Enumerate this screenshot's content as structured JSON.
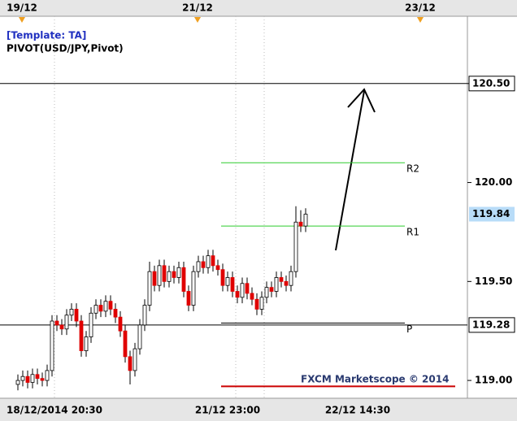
{
  "chart_data": {
    "type": "candlestick",
    "template": "[Template: TA]",
    "indicator": "PIVOT(USD/JPY,Pivot)",
    "watermark": "FXCM Marketscope © 2014",
    "top_dates": [
      "19/12",
      "21/12",
      "23/12"
    ],
    "x_axis_labels": [
      "18/12/2014 20:30",
      "21/12 23:00",
      "22/12 14:30"
    ],
    "ylim": [
      118.91,
      120.84
    ],
    "yticks": [
      {
        "value": 119.0,
        "label": "119.00"
      },
      {
        "value": 119.5,
        "label": "119.50"
      },
      {
        "value": 120.0,
        "label": "120.00"
      },
      {
        "value": 120.5,
        "label": "120.50"
      }
    ],
    "hlines": [
      {
        "value": 120.5,
        "label": "120.50"
      },
      {
        "value": 119.28,
        "label": "119.28"
      }
    ],
    "last_price": {
      "value": 119.84,
      "label": "119.84",
      "color": "#b8dcf8"
    },
    "levels": [
      {
        "name": "R2",
        "value": 120.1,
        "color": "#2ecc2e"
      },
      {
        "name": "R1",
        "value": 119.78,
        "color": "#2ecc2e"
      },
      {
        "name": "P",
        "value": 119.29,
        "color": "#000000"
      }
    ],
    "red_line": {
      "value": 118.97,
      "color": "#cc0000"
    },
    "up_color": "#ffffff",
    "down_color": "#e00000",
    "open": [
      118.98,
      119.0,
      119.02,
      118.99,
      119.03,
      119.01,
      119.0,
      119.05,
      119.3,
      119.28,
      119.26,
      119.33,
      119.36,
      119.3,
      119.15,
      119.22,
      119.34,
      119.38,
      119.35,
      119.4,
      119.36,
      119.32,
      119.25,
      119.12,
      119.05,
      119.16,
      119.28,
      119.38,
      119.55,
      119.48,
      119.58,
      119.5,
      119.55,
      119.52,
      119.57,
      119.45,
      119.38,
      119.55,
      119.6,
      119.57,
      119.63,
      119.58,
      119.56,
      119.48,
      119.52,
      119.45,
      119.42,
      119.49,
      119.44,
      119.41,
      119.36,
      119.42,
      119.47,
      119.45,
      119.52,
      119.5,
      119.48,
      119.55,
      119.8,
      119.78
    ],
    "high": [
      119.03,
      119.05,
      119.05,
      119.06,
      119.06,
      119.04,
      119.08,
      119.33,
      119.33,
      119.31,
      119.36,
      119.39,
      119.39,
      119.33,
      119.25,
      119.37,
      119.41,
      119.41,
      119.43,
      119.43,
      119.39,
      119.35,
      119.28,
      119.15,
      119.19,
      119.31,
      119.41,
      119.6,
      119.58,
      119.61,
      119.61,
      119.58,
      119.58,
      119.6,
      119.6,
      119.48,
      119.58,
      119.63,
      119.63,
      119.66,
      119.66,
      119.61,
      119.59,
      119.55,
      119.55,
      119.48,
      119.52,
      119.52,
      119.47,
      119.44,
      119.45,
      119.5,
      119.5,
      119.55,
      119.55,
      119.53,
      119.58,
      119.88,
      119.86,
      119.87
    ],
    "low": [
      118.95,
      118.97,
      118.96,
      118.96,
      118.98,
      118.97,
      118.97,
      119.02,
      119.25,
      119.23,
      119.23,
      119.3,
      119.27,
      119.12,
      119.12,
      119.19,
      119.31,
      119.32,
      119.32,
      119.33,
      119.29,
      119.22,
      119.09,
      118.98,
      119.02,
      119.13,
      119.25,
      119.35,
      119.45,
      119.45,
      119.47,
      119.47,
      119.49,
      119.49,
      119.42,
      119.35,
      119.35,
      119.52,
      119.54,
      119.54,
      119.55,
      119.53,
      119.45,
      119.45,
      119.42,
      119.39,
      119.39,
      119.41,
      119.38,
      119.33,
      119.33,
      119.39,
      119.42,
      119.42,
      119.47,
      119.45,
      119.45,
      119.52,
      119.75,
      119.75
    ],
    "close": [
      119.0,
      119.02,
      118.99,
      119.03,
      119.01,
      119.0,
      119.05,
      119.3,
      119.28,
      119.26,
      119.33,
      119.36,
      119.3,
      119.15,
      119.22,
      119.34,
      119.38,
      119.35,
      119.4,
      119.36,
      119.32,
      119.25,
      119.12,
      119.05,
      119.16,
      119.28,
      119.38,
      119.55,
      119.48,
      119.58,
      119.5,
      119.55,
      119.52,
      119.57,
      119.45,
      119.38,
      119.55,
      119.6,
      119.57,
      119.63,
      119.58,
      119.56,
      119.48,
      119.52,
      119.45,
      119.42,
      119.49,
      119.44,
      119.41,
      119.36,
      119.42,
      119.47,
      119.45,
      119.52,
      119.5,
      119.48,
      119.55,
      119.8,
      119.78,
      119.84
    ]
  }
}
